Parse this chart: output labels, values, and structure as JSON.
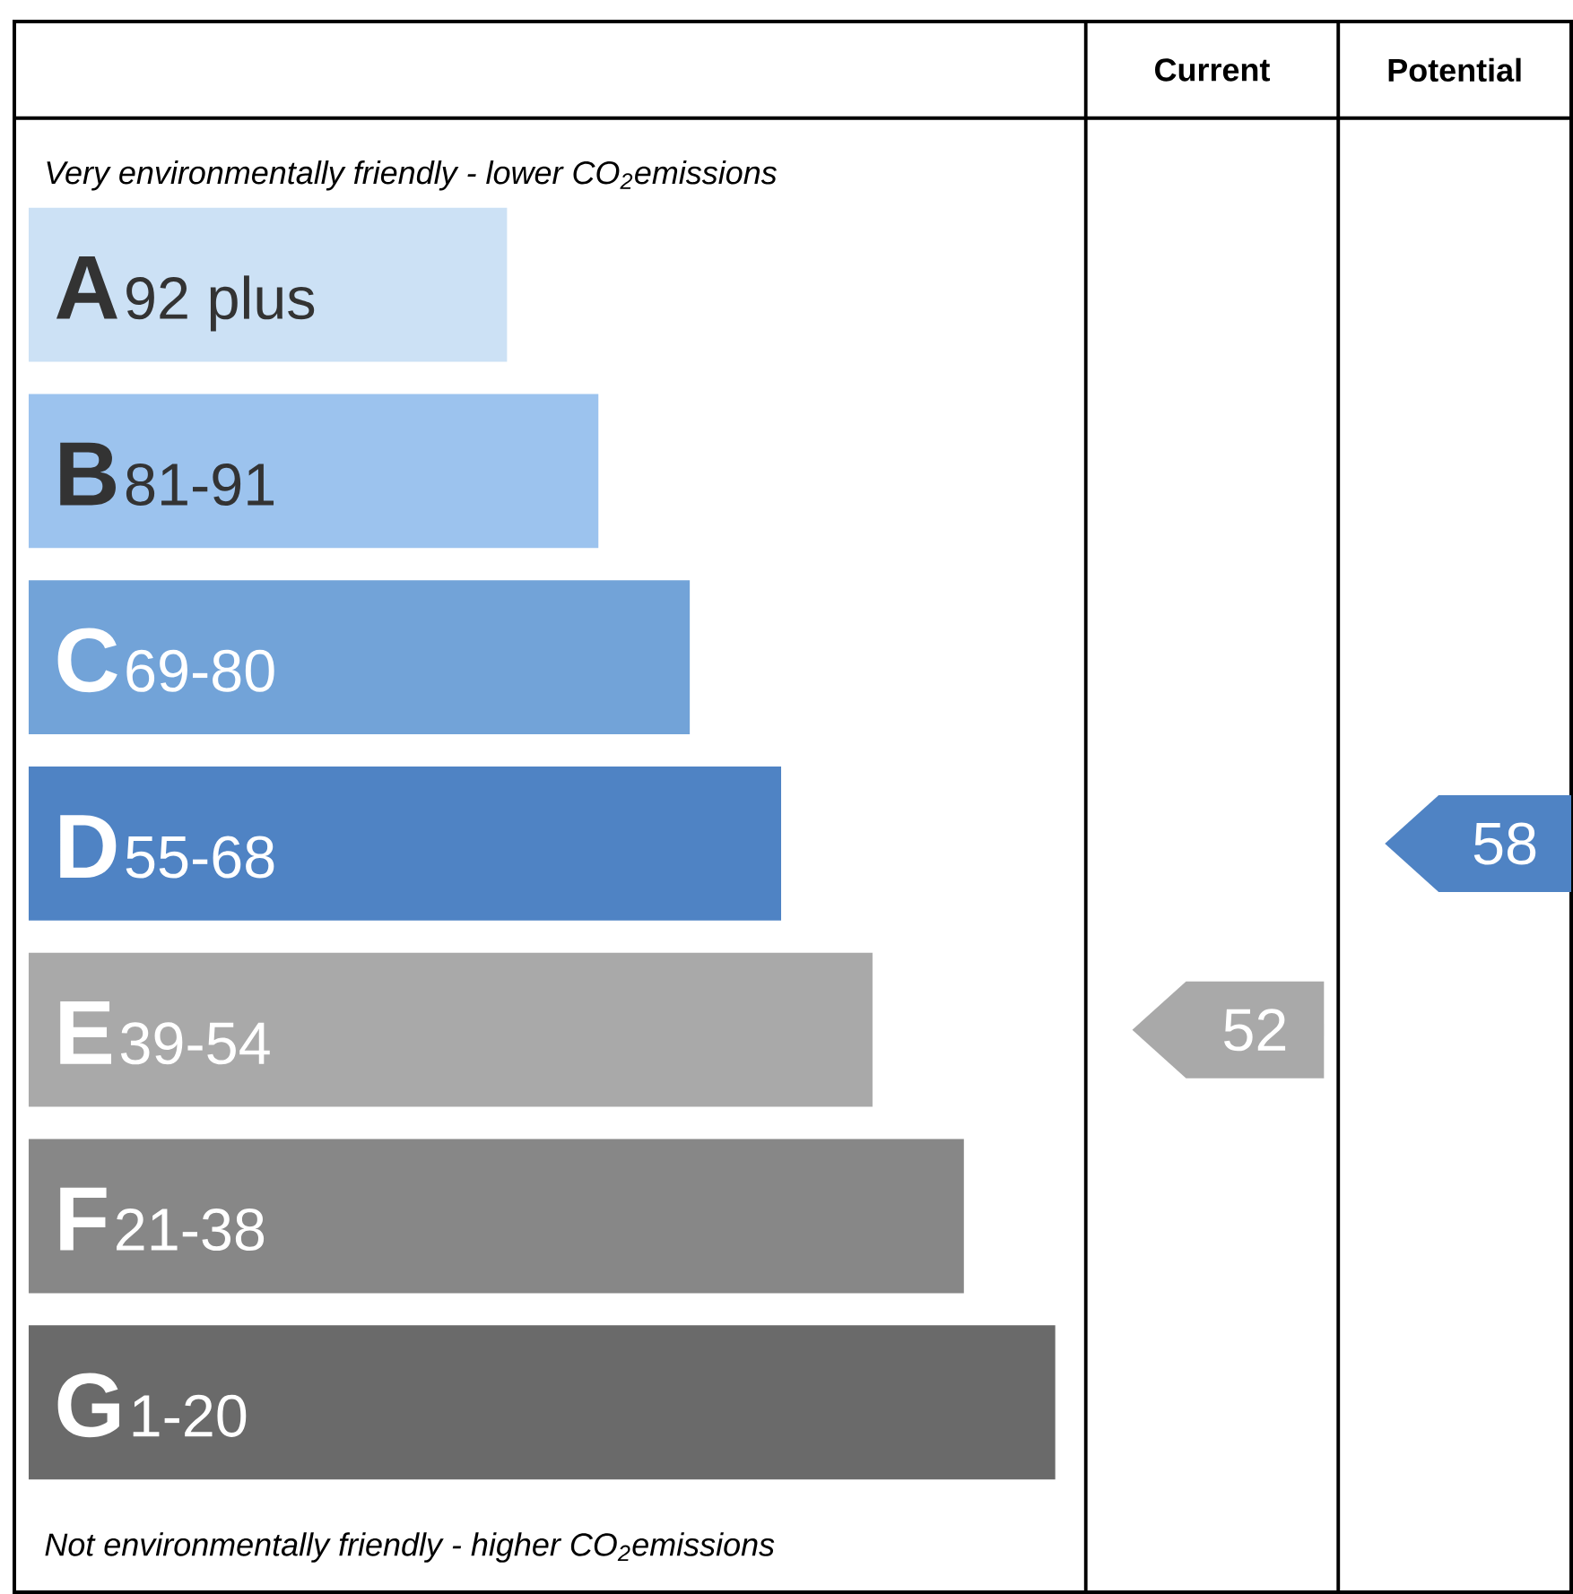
{
  "chart_data": {
    "type": "other",
    "categories": [
      "A",
      "B",
      "C",
      "D",
      "E",
      "F",
      "G"
    ],
    "value_labels": [
      "92 plus",
      "81-91",
      "69-80",
      "55-68",
      "39-54",
      "21-38",
      "1-20"
    ],
    "colors": [
      "#cce1f5",
      "#9cc3ee",
      "#72a3d8",
      "#4f83c4",
      "#a9a9a9",
      "#878787",
      "#6a6a6a"
    ],
    "series": [
      {
        "color": "#a9a9a9",
        "values": [
          null,
          null,
          null,
          null,
          52,
          null,
          null
        ]
      },
      {
        "color": "#4f83c4",
        "values": [
          null,
          null,
          null,
          58,
          null,
          null,
          null
        ]
      }
    ],
    "data_labels": true,
    "annotations": [
      "Very environmentally friendly - lower CO$_{2}$emissions",
      "Not environmentally friendly - higher CO$_{2}$emissions",
      "Current",
      "Potential"
    ]
  }
}
